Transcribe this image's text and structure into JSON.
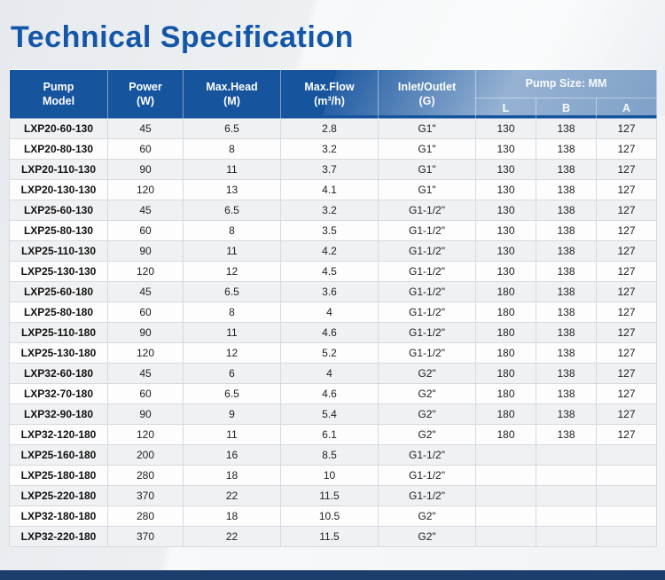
{
  "page": {
    "title": "Technical Specification"
  },
  "colors": {
    "title_blue": "#1457a8",
    "header_blue": "#16549e",
    "footer_navy": "#1c3e6d",
    "row_stripe": "#f0f1f3"
  },
  "table": {
    "headers": {
      "pump_model": "Pump\nModel",
      "power": "Power\n(W)",
      "max_head": "Max.Head\n(M)",
      "max_flow": "Max.Flow\n(m³/h)",
      "inlet_outlet": "Inlet/Outlet\n(G)",
      "pump_size": "Pump Size: MM",
      "size_l": "L",
      "size_b": "B",
      "size_a": "A"
    },
    "rows": [
      {
        "model": "LXP20-60-130",
        "power": "45",
        "head": "6.5",
        "flow": "2.8",
        "inlet": "G1\"",
        "l": "130",
        "b": "138",
        "a": "127"
      },
      {
        "model": "LXP20-80-130",
        "power": "60",
        "head": "8",
        "flow": "3.2",
        "inlet": "G1\"",
        "l": "130",
        "b": "138",
        "a": "127"
      },
      {
        "model": "LXP20-110-130",
        "power": "90",
        "head": "11",
        "flow": "3.7",
        "inlet": "G1\"",
        "l": "130",
        "b": "138",
        "a": "127"
      },
      {
        "model": "LXP20-130-130",
        "power": "120",
        "head": "13",
        "flow": "4.1",
        "inlet": "G1\"",
        "l": "130",
        "b": "138",
        "a": "127"
      },
      {
        "model": "LXP25-60-130",
        "power": "45",
        "head": "6.5",
        "flow": "3.2",
        "inlet": "G1-1/2\"",
        "l": "130",
        "b": "138",
        "a": "127"
      },
      {
        "model": "LXP25-80-130",
        "power": "60",
        "head": "8",
        "flow": "3.5",
        "inlet": "G1-1/2\"",
        "l": "130",
        "b": "138",
        "a": "127"
      },
      {
        "model": "LXP25-110-130",
        "power": "90",
        "head": "11",
        "flow": "4.2",
        "inlet": "G1-1/2\"",
        "l": "130",
        "b": "138",
        "a": "127"
      },
      {
        "model": "LXP25-130-130",
        "power": "120",
        "head": "12",
        "flow": "4.5",
        "inlet": "G1-1/2\"",
        "l": "130",
        "b": "138",
        "a": "127"
      },
      {
        "model": "LXP25-60-180",
        "power": "45",
        "head": "6.5",
        "flow": "3.6",
        "inlet": "G1-1/2\"",
        "l": "180",
        "b": "138",
        "a": "127"
      },
      {
        "model": "LXP25-80-180",
        "power": "60",
        "head": "8",
        "flow": "4",
        "inlet": "G1-1/2\"",
        "l": "180",
        "b": "138",
        "a": "127"
      },
      {
        "model": "LXP25-110-180",
        "power": "90",
        "head": "11",
        "flow": "4.6",
        "inlet": "G1-1/2\"",
        "l": "180",
        "b": "138",
        "a": "127"
      },
      {
        "model": "LXP25-130-180",
        "power": "120",
        "head": "12",
        "flow": "5.2",
        "inlet": "G1-1/2\"",
        "l": "180",
        "b": "138",
        "a": "127"
      },
      {
        "model": "LXP32-60-180",
        "power": "45",
        "head": "6",
        "flow": "4",
        "inlet": "G2\"",
        "l": "180",
        "b": "138",
        "a": "127"
      },
      {
        "model": "LXP32-70-180",
        "power": "60",
        "head": "6.5",
        "flow": "4.6",
        "inlet": "G2\"",
        "l": "180",
        "b": "138",
        "a": "127"
      },
      {
        "model": "LXP32-90-180",
        "power": "90",
        "head": "9",
        "flow": "5.4",
        "inlet": "G2\"",
        "l": "180",
        "b": "138",
        "a": "127"
      },
      {
        "model": "LXP32-120-180",
        "power": "120",
        "head": "11",
        "flow": "6.1",
        "inlet": "G2\"",
        "l": "180",
        "b": "138",
        "a": "127"
      },
      {
        "model": "LXP25-160-180",
        "power": "200",
        "head": "16",
        "flow": "8.5",
        "inlet": "G1-1/2\"",
        "l": "",
        "b": "",
        "a": ""
      },
      {
        "model": "LXP25-180-180",
        "power": "280",
        "head": "18",
        "flow": "10",
        "inlet": "G1-1/2\"",
        "l": "",
        "b": "",
        "a": ""
      },
      {
        "model": "LXP25-220-180",
        "power": "370",
        "head": "22",
        "flow": "11.5",
        "inlet": "G1-1/2\"",
        "l": "",
        "b": "",
        "a": ""
      },
      {
        "model": "LXP32-180-180",
        "power": "280",
        "head": "18",
        "flow": "10.5",
        "inlet": "G2\"",
        "l": "",
        "b": "",
        "a": ""
      },
      {
        "model": "LXP32-220-180",
        "power": "370",
        "head": "22",
        "flow": "11.5",
        "inlet": "G2\"",
        "l": "",
        "b": "",
        "a": ""
      }
    ]
  }
}
